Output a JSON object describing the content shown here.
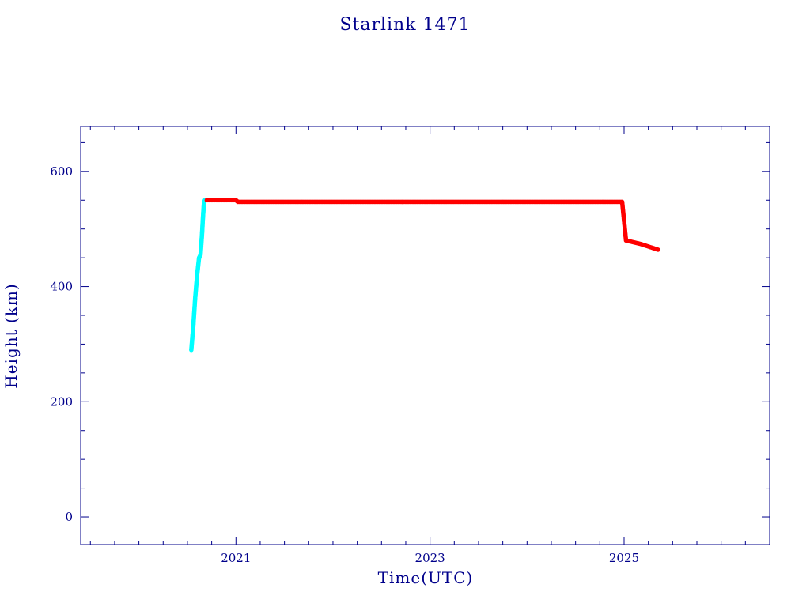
{
  "chart_data": {
    "type": "scatter",
    "title": "Starlink 1471",
    "xlabel": "Time(UTC)",
    "ylabel": "Height (km)",
    "xlim": [
      2019.4,
      2026.5
    ],
    "ylim": [
      -48,
      678
    ],
    "x_ticks": [
      2021,
      2023,
      2025
    ],
    "x_minor_step": 0.25,
    "y_ticks": [
      0,
      200,
      400,
      600
    ],
    "y_minor_step": 50,
    "grid": false,
    "series": [
      {
        "color": "#00ffff",
        "points": [
          [
            2020.54,
            290
          ],
          [
            2020.56,
            330
          ],
          [
            2020.58,
            380
          ],
          [
            2020.6,
            420
          ],
          [
            2020.62,
            450
          ],
          [
            2020.635,
            455
          ],
          [
            2020.65,
            490
          ],
          [
            2020.66,
            520
          ],
          [
            2020.67,
            545
          ],
          [
            2020.68,
            550
          ]
        ]
      },
      {
        "color": "#ff0000",
        "points": [
          [
            2020.7,
            550
          ],
          [
            2021.0,
            550
          ],
          [
            2021.02,
            547
          ],
          [
            2022.0,
            547
          ],
          [
            2023.0,
            547
          ],
          [
            2024.0,
            547
          ],
          [
            2024.98,
            547
          ],
          [
            2025.02,
            480
          ],
          [
            2025.17,
            474
          ],
          [
            2025.35,
            464
          ]
        ]
      }
    ]
  }
}
